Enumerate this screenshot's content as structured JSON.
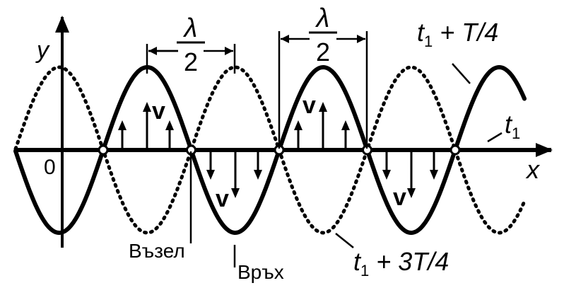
{
  "labels": {
    "y_axis": "y",
    "x_axis": "x",
    "origin": "0",
    "lambda": "λ",
    "two": "2",
    "velocity": "v",
    "node": "Възел",
    "antinode": "Връх",
    "curve_t1": "t",
    "curve_t1_sub": "1",
    "curve_t1_t4_prefix": "t",
    "curve_t1_t4_sub": "1",
    "curve_t1_t4_suffix": " + T/4",
    "curve_t1_3t4_prefix": "t",
    "curve_t1_3t4_sub": "1",
    "curve_t1_3t4_suffix": " + 3T/4"
  },
  "colors": {
    "ink": "#000000",
    "background": "#ffffff"
  }
}
